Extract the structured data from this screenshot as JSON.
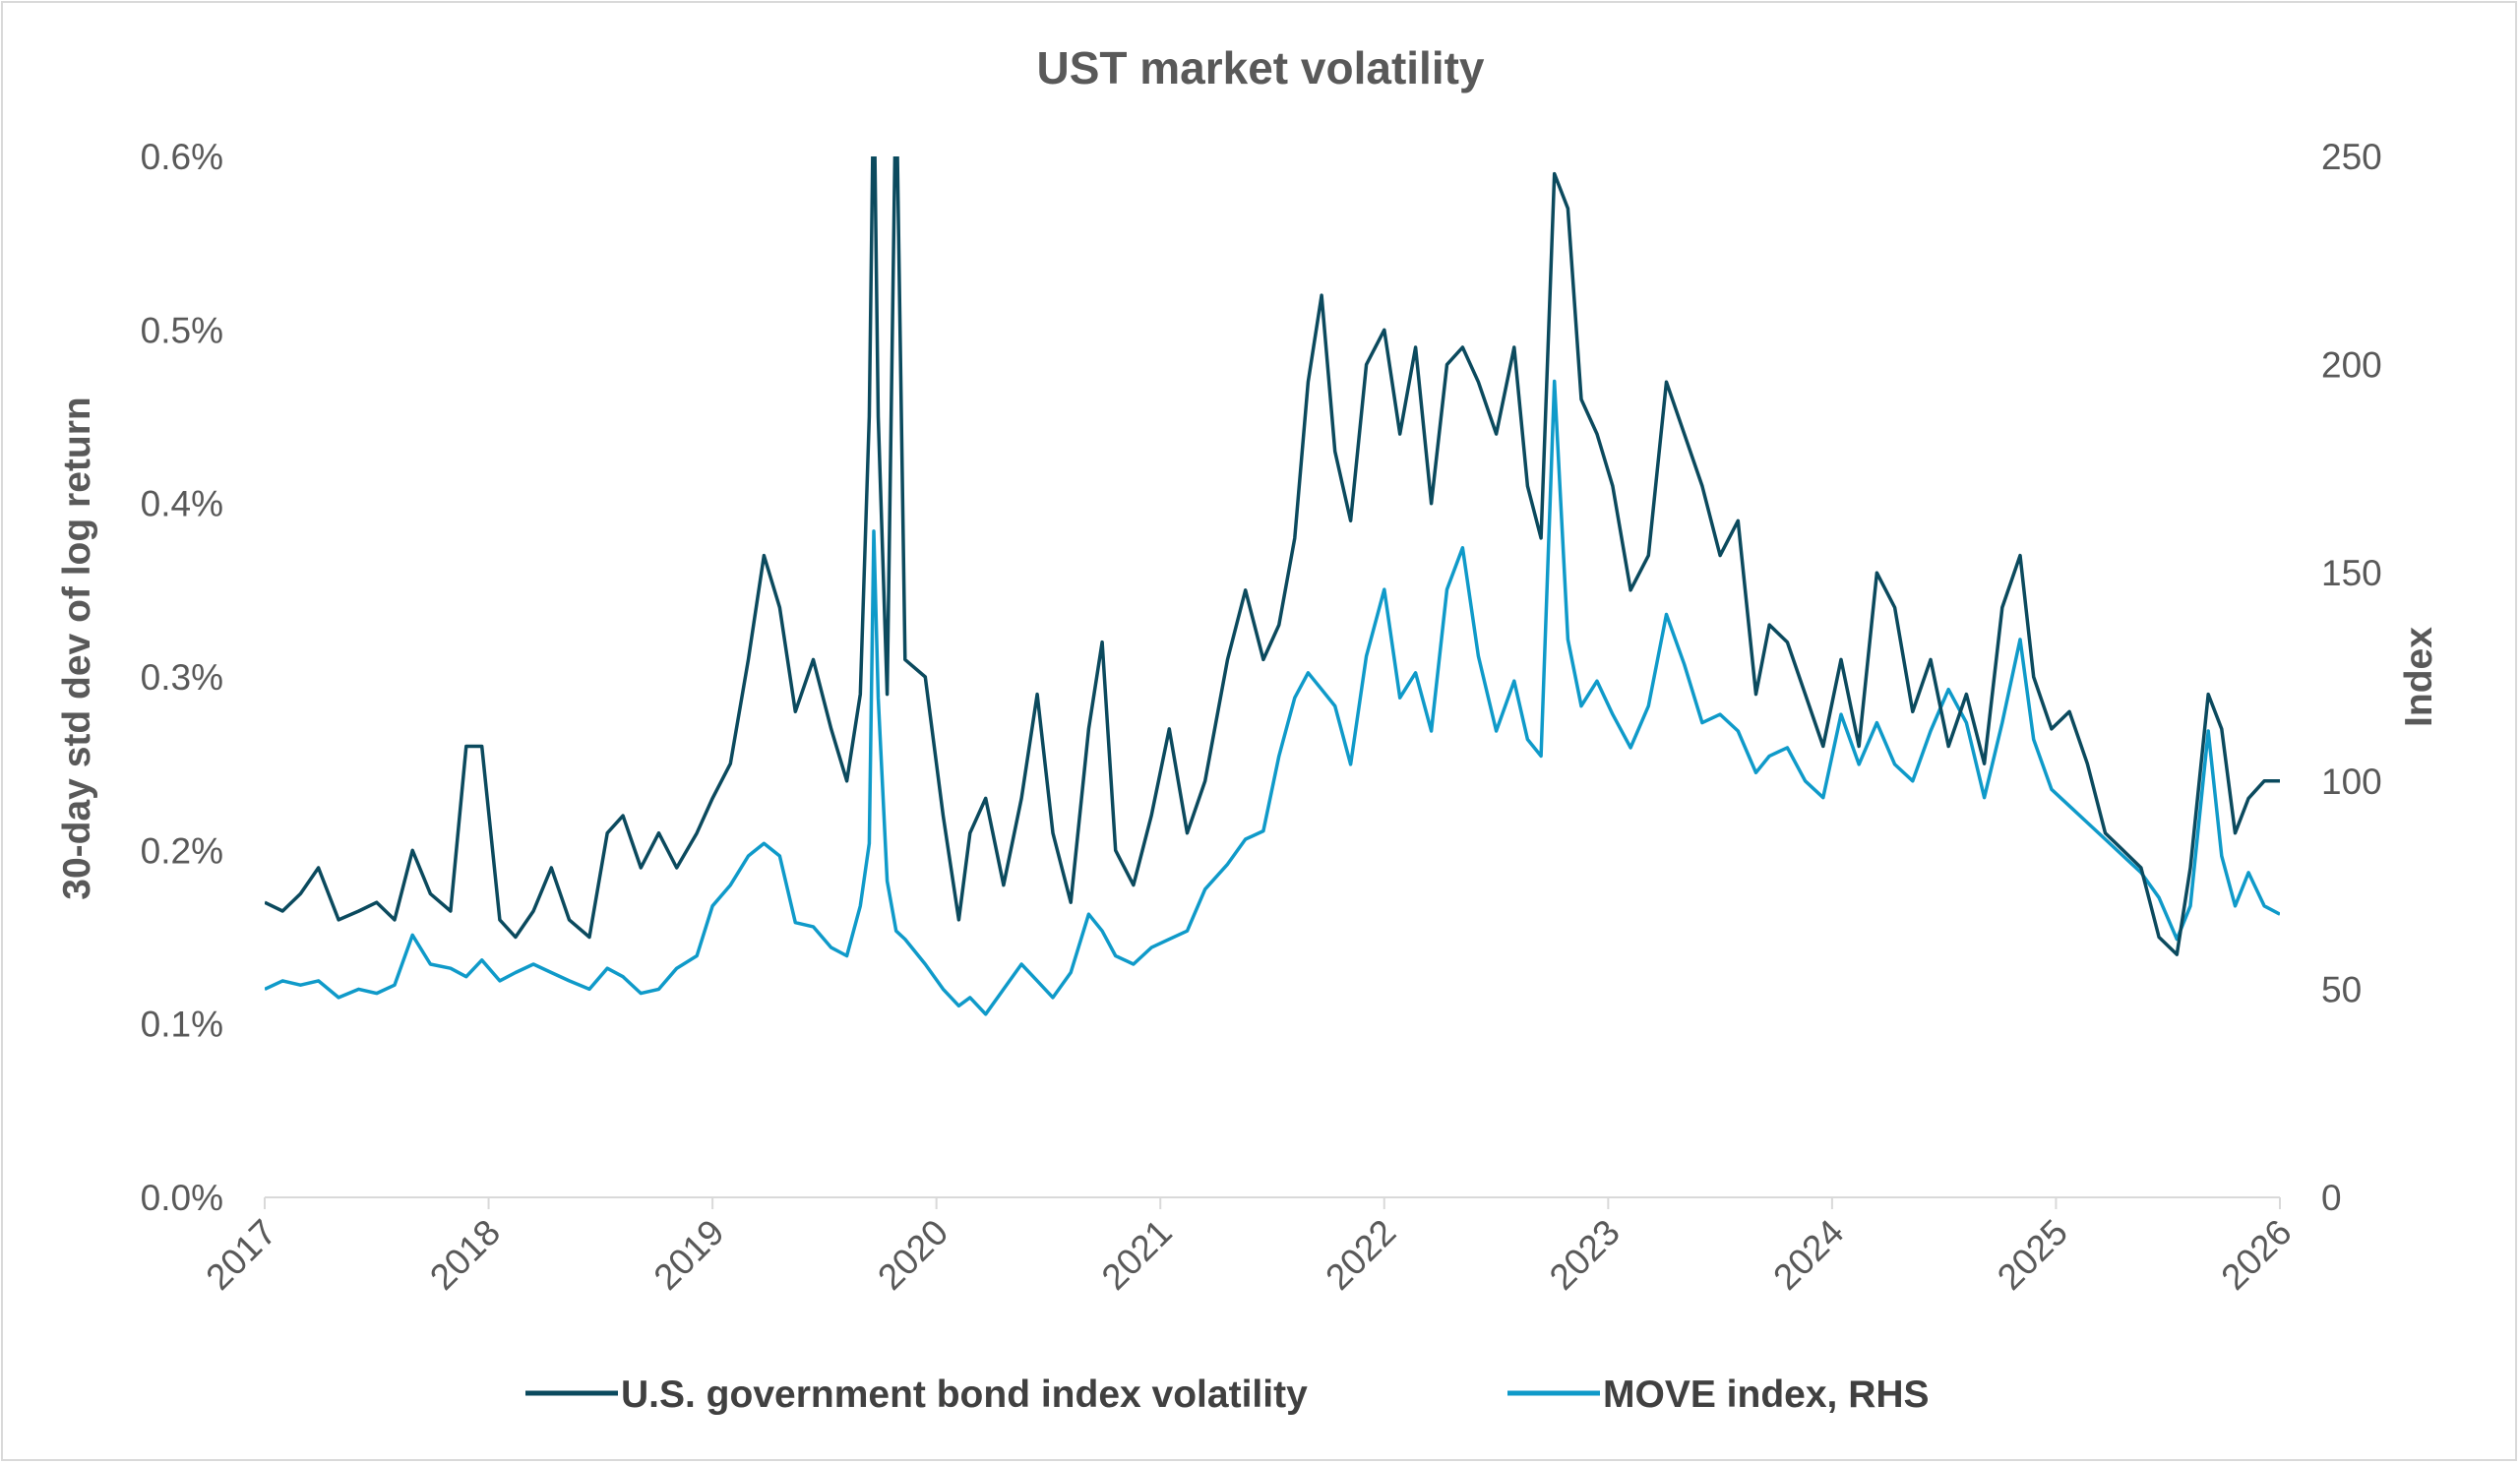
{
  "chart_data": {
    "type": "line",
    "title": "UST market volatility",
    "ylabel_left": "30-day std dev of log return",
    "ylabel_right": "Index",
    "xlim": [
      2017,
      2026
    ],
    "ylim_left": [
      0,
      0.006
    ],
    "ylim_right": [
      0,
      250
    ],
    "x_ticks": [
      "2017",
      "2018",
      "2019",
      "2020",
      "2021",
      "2022",
      "2023",
      "2024",
      "2025",
      "2026"
    ],
    "y_left_ticks": [
      "0.0%",
      "0.1%",
      "0.2%",
      "0.3%",
      "0.4%",
      "0.5%",
      "0.6%"
    ],
    "y_right_ticks": [
      "0",
      "50",
      "100",
      "150",
      "200",
      "250"
    ],
    "grid": false,
    "legend_position": "bottom",
    "series": [
      {
        "name": "U.S. government bond index volatility",
        "axis": "left",
        "color": "#0b4a5e",
        "points": [
          [
            2017.0,
            0.0017
          ],
          [
            2017.08,
            0.00165
          ],
          [
            2017.16,
            0.00175
          ],
          [
            2017.24,
            0.0019
          ],
          [
            2017.33,
            0.0016
          ],
          [
            2017.42,
            0.00165
          ],
          [
            2017.5,
            0.0017
          ],
          [
            2017.58,
            0.0016
          ],
          [
            2017.66,
            0.002
          ],
          [
            2017.74,
            0.00175
          ],
          [
            2017.83,
            0.00165
          ],
          [
            2017.9,
            0.0026
          ],
          [
            2017.97,
            0.0026
          ],
          [
            2018.05,
            0.0016
          ],
          [
            2018.12,
            0.0015
          ],
          [
            2018.2,
            0.00165
          ],
          [
            2018.28,
            0.0019
          ],
          [
            2018.36,
            0.0016
          ],
          [
            2018.45,
            0.0015
          ],
          [
            2018.53,
            0.0021
          ],
          [
            2018.6,
            0.0022
          ],
          [
            2018.68,
            0.0019
          ],
          [
            2018.76,
            0.0021
          ],
          [
            2018.84,
            0.0019
          ],
          [
            2018.93,
            0.0021
          ],
          [
            2019.0,
            0.0023
          ],
          [
            2019.08,
            0.0025
          ],
          [
            2019.16,
            0.0031
          ],
          [
            2019.23,
            0.0037
          ],
          [
            2019.3,
            0.0034
          ],
          [
            2019.37,
            0.0028
          ],
          [
            2019.45,
            0.0031
          ],
          [
            2019.53,
            0.0027
          ],
          [
            2019.6,
            0.0024
          ],
          [
            2019.66,
            0.0029
          ],
          [
            2019.7,
            0.0045
          ],
          [
            2019.72,
            0.0065
          ],
          [
            2019.74,
            0.0045
          ],
          [
            2019.78,
            0.0029
          ],
          [
            2019.82,
            0.0065
          ],
          [
            2019.86,
            0.0031
          ],
          [
            2019.95,
            0.003
          ],
          [
            2020.03,
            0.0022
          ],
          [
            2020.1,
            0.0016
          ],
          [
            2020.15,
            0.0021
          ],
          [
            2020.22,
            0.0023
          ],
          [
            2020.3,
            0.0018
          ],
          [
            2020.38,
            0.0023
          ],
          [
            2020.45,
            0.0029
          ],
          [
            2020.52,
            0.0021
          ],
          [
            2020.6,
            0.0017
          ],
          [
            2020.68,
            0.0027
          ],
          [
            2020.74,
            0.0032
          ],
          [
            2020.8,
            0.002
          ],
          [
            2020.88,
            0.0018
          ],
          [
            2020.96,
            0.0022
          ],
          [
            2021.04,
            0.0027
          ],
          [
            2021.12,
            0.0021
          ],
          [
            2021.2,
            0.0024
          ],
          [
            2021.3,
            0.0031
          ],
          [
            2021.38,
            0.0035
          ],
          [
            2021.46,
            0.0031
          ],
          [
            2021.53,
            0.0033
          ],
          [
            2021.6,
            0.0038
          ],
          [
            2021.66,
            0.0047
          ],
          [
            2021.72,
            0.0052
          ],
          [
            2021.78,
            0.0043
          ],
          [
            2021.85,
            0.0039
          ],
          [
            2021.92,
            0.0048
          ],
          [
            2022.0,
            0.005
          ],
          [
            2022.07,
            0.0044
          ],
          [
            2022.14,
            0.0049
          ],
          [
            2022.21,
            0.004
          ],
          [
            2022.28,
            0.0048
          ],
          [
            2022.35,
            0.0049
          ],
          [
            2022.42,
            0.0047
          ],
          [
            2022.5,
            0.0044
          ],
          [
            2022.58,
            0.0049
          ],
          [
            2022.64,
            0.0041
          ],
          [
            2022.7,
            0.0038
          ],
          [
            2022.76,
            0.0059
          ],
          [
            2022.82,
            0.0057
          ],
          [
            2022.88,
            0.0046
          ],
          [
            2022.95,
            0.0044
          ],
          [
            2023.02,
            0.0041
          ],
          [
            2023.1,
            0.0035
          ],
          [
            2023.18,
            0.0037
          ],
          [
            2023.26,
            0.0047
          ],
          [
            2023.34,
            0.0044
          ],
          [
            2023.42,
            0.0041
          ],
          [
            2023.5,
            0.0037
          ],
          [
            2023.58,
            0.0039
          ],
          [
            2023.66,
            0.0029
          ],
          [
            2023.72,
            0.0033
          ],
          [
            2023.8,
            0.0032
          ],
          [
            2023.88,
            0.0029
          ],
          [
            2023.96,
            0.0026
          ],
          [
            2024.04,
            0.0031
          ],
          [
            2024.12,
            0.0026
          ],
          [
            2024.2,
            0.0036
          ],
          [
            2024.28,
            0.0034
          ],
          [
            2024.36,
            0.0028
          ],
          [
            2024.44,
            0.0031
          ],
          [
            2024.52,
            0.0026
          ],
          [
            2024.6,
            0.0029
          ],
          [
            2024.68,
            0.0025
          ],
          [
            2024.76,
            0.0034
          ],
          [
            2024.84,
            0.0037
          ],
          [
            2024.9,
            0.003
          ],
          [
            2024.98,
            0.0027
          ],
          [
            2025.06,
            0.0028
          ],
          [
            2025.14,
            0.0025
          ],
          [
            2025.22,
            0.0021
          ],
          [
            2025.3,
            0.002
          ],
          [
            2025.38,
            0.0019
          ],
          [
            2025.46,
            0.0015
          ],
          [
            2025.54,
            0.0014
          ],
          [
            2025.6,
            0.0019
          ],
          [
            2025.68,
            0.0029
          ],
          [
            2025.74,
            0.0027
          ],
          [
            2025.8,
            0.0021
          ],
          [
            2025.86,
            0.0023
          ],
          [
            2025.93,
            0.0024
          ],
          [
            2026.0,
            0.0024
          ]
        ]
      },
      {
        "name": "MOVE index, RHS",
        "axis": "right",
        "color": "#0f9ac9",
        "points": [
          [
            2017.0,
            50
          ],
          [
            2017.08,
            52
          ],
          [
            2017.16,
            51
          ],
          [
            2017.24,
            52
          ],
          [
            2017.33,
            48
          ],
          [
            2017.42,
            50
          ],
          [
            2017.5,
            49
          ],
          [
            2017.58,
            51
          ],
          [
            2017.66,
            63
          ],
          [
            2017.74,
            56
          ],
          [
            2017.83,
            55
          ],
          [
            2017.9,
            53
          ],
          [
            2017.97,
            57
          ],
          [
            2018.05,
            52
          ],
          [
            2018.12,
            54
          ],
          [
            2018.2,
            56
          ],
          [
            2018.28,
            54
          ],
          [
            2018.36,
            52
          ],
          [
            2018.45,
            50
          ],
          [
            2018.53,
            55
          ],
          [
            2018.6,
            53
          ],
          [
            2018.68,
            49
          ],
          [
            2018.76,
            50
          ],
          [
            2018.84,
            55
          ],
          [
            2018.93,
            58
          ],
          [
            2019.0,
            70
          ],
          [
            2019.08,
            75
          ],
          [
            2019.16,
            82
          ],
          [
            2019.23,
            85
          ],
          [
            2019.3,
            82
          ],
          [
            2019.37,
            66
          ],
          [
            2019.45,
            65
          ],
          [
            2019.53,
            60
          ],
          [
            2019.6,
            58
          ],
          [
            2019.66,
            70
          ],
          [
            2019.7,
            85
          ],
          [
            2019.72,
            160
          ],
          [
            2019.74,
            120
          ],
          [
            2019.78,
            76
          ],
          [
            2019.82,
            64
          ],
          [
            2019.86,
            62
          ],
          [
            2019.95,
            56
          ],
          [
            2020.03,
            50
          ],
          [
            2020.1,
            46
          ],
          [
            2020.15,
            48
          ],
          [
            2020.22,
            44
          ],
          [
            2020.3,
            50
          ],
          [
            2020.38,
            56
          ],
          [
            2020.45,
            52
          ],
          [
            2020.52,
            48
          ],
          [
            2020.6,
            54
          ],
          [
            2020.68,
            68
          ],
          [
            2020.74,
            64
          ],
          [
            2020.8,
            58
          ],
          [
            2020.88,
            56
          ],
          [
            2020.96,
            60
          ],
          [
            2021.04,
            62
          ],
          [
            2021.12,
            64
          ],
          [
            2021.2,
            74
          ],
          [
            2021.3,
            80
          ],
          [
            2021.38,
            86
          ],
          [
            2021.46,
            88
          ],
          [
            2021.53,
            106
          ],
          [
            2021.6,
            120
          ],
          [
            2021.66,
            126
          ],
          [
            2021.72,
            122
          ],
          [
            2021.78,
            118
          ],
          [
            2021.85,
            104
          ],
          [
            2021.92,
            130
          ],
          [
            2022.0,
            146
          ],
          [
            2022.07,
            120
          ],
          [
            2022.14,
            126
          ],
          [
            2022.21,
            112
          ],
          [
            2022.28,
            146
          ],
          [
            2022.35,
            156
          ],
          [
            2022.42,
            130
          ],
          [
            2022.5,
            112
          ],
          [
            2022.58,
            124
          ],
          [
            2022.64,
            110
          ],
          [
            2022.7,
            106
          ],
          [
            2022.76,
            196
          ],
          [
            2022.82,
            134
          ],
          [
            2022.88,
            118
          ],
          [
            2022.95,
            124
          ],
          [
            2023.02,
            116
          ],
          [
            2023.1,
            108
          ],
          [
            2023.18,
            118
          ],
          [
            2023.26,
            140
          ],
          [
            2023.34,
            128
          ],
          [
            2023.42,
            114
          ],
          [
            2023.5,
            116
          ],
          [
            2023.58,
            112
          ],
          [
            2023.66,
            102
          ],
          [
            2023.72,
            106
          ],
          [
            2023.8,
            108
          ],
          [
            2023.88,
            100
          ],
          [
            2023.96,
            96
          ],
          [
            2024.04,
            116
          ],
          [
            2024.12,
            104
          ],
          [
            2024.2,
            114
          ],
          [
            2024.28,
            104
          ],
          [
            2024.36,
            100
          ],
          [
            2024.44,
            112
          ],
          [
            2024.52,
            122
          ],
          [
            2024.6,
            114
          ],
          [
            2024.68,
            96
          ],
          [
            2024.76,
            114
          ],
          [
            2024.84,
            134
          ],
          [
            2024.9,
            110
          ],
          [
            2024.98,
            98
          ],
          [
            2025.06,
            94
          ],
          [
            2025.14,
            90
          ],
          [
            2025.22,
            86
          ],
          [
            2025.3,
            82
          ],
          [
            2025.38,
            78
          ],
          [
            2025.46,
            72
          ],
          [
            2025.54,
            62
          ],
          [
            2025.6,
            70
          ],
          [
            2025.68,
            112
          ],
          [
            2025.74,
            82
          ],
          [
            2025.8,
            70
          ],
          [
            2025.86,
            78
          ],
          [
            2025.93,
            70
          ],
          [
            2026.0,
            68
          ]
        ]
      }
    ]
  }
}
